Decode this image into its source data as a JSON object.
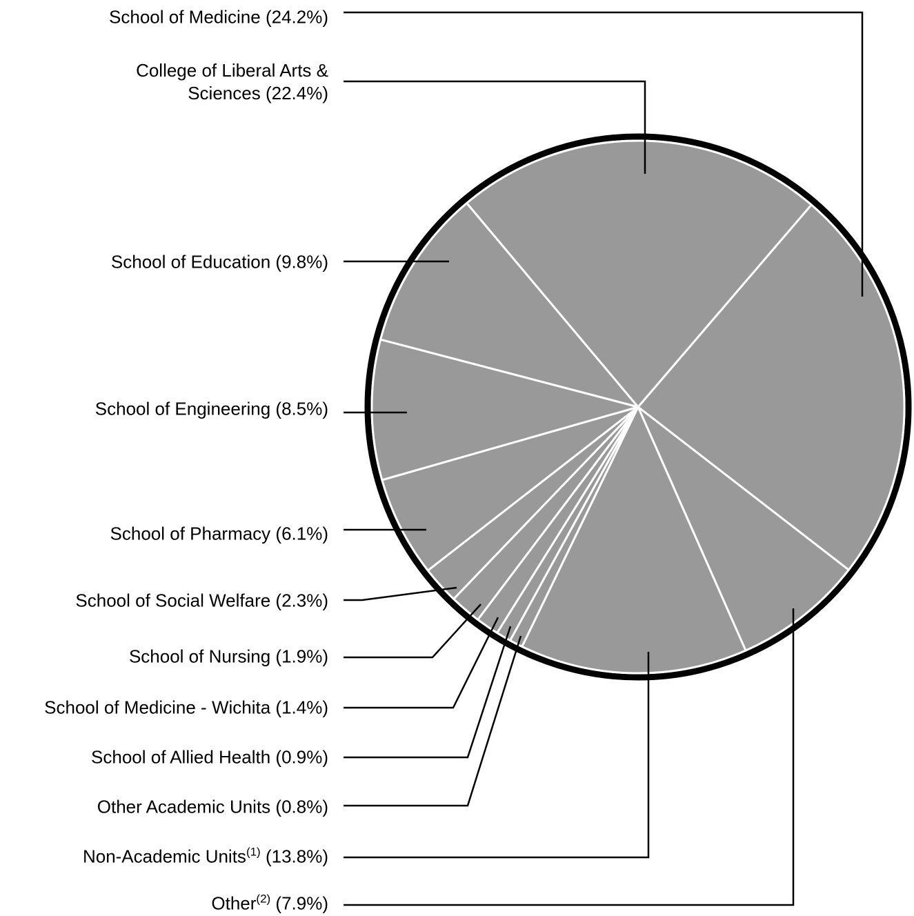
{
  "chart_data": {
    "type": "pie",
    "categories": [
      "School of Medicine",
      "Other",
      "Non-Academic Units",
      "Other Academic Units",
      "School of Allied Health",
      "School of Medicine - Wichita",
      "School of Nursing",
      "School of Social Welfare",
      "School of Pharmacy",
      "School of Engineering",
      "School of Education",
      "College of Liberal Arts & Sciences"
    ],
    "values": [
      24.2,
      7.9,
      13.8,
      0.8,
      0.9,
      1.4,
      1.9,
      2.3,
      6.1,
      8.5,
      9.8,
      22.4
    ],
    "value_labels": [
      "(24.2%)",
      "(7.9%)",
      "(13.8%)",
      "(0.8%)",
      "(0.9%)",
      "(1.4%)",
      "(1.9%)",
      "(2.3%)",
      "(6.1%)",
      "(8.5%)",
      "(9.8%)",
      "(22.4%)"
    ],
    "footnotes": {
      "1": "(2)",
      "2": "(1)"
    },
    "color": "#999999"
  }
}
